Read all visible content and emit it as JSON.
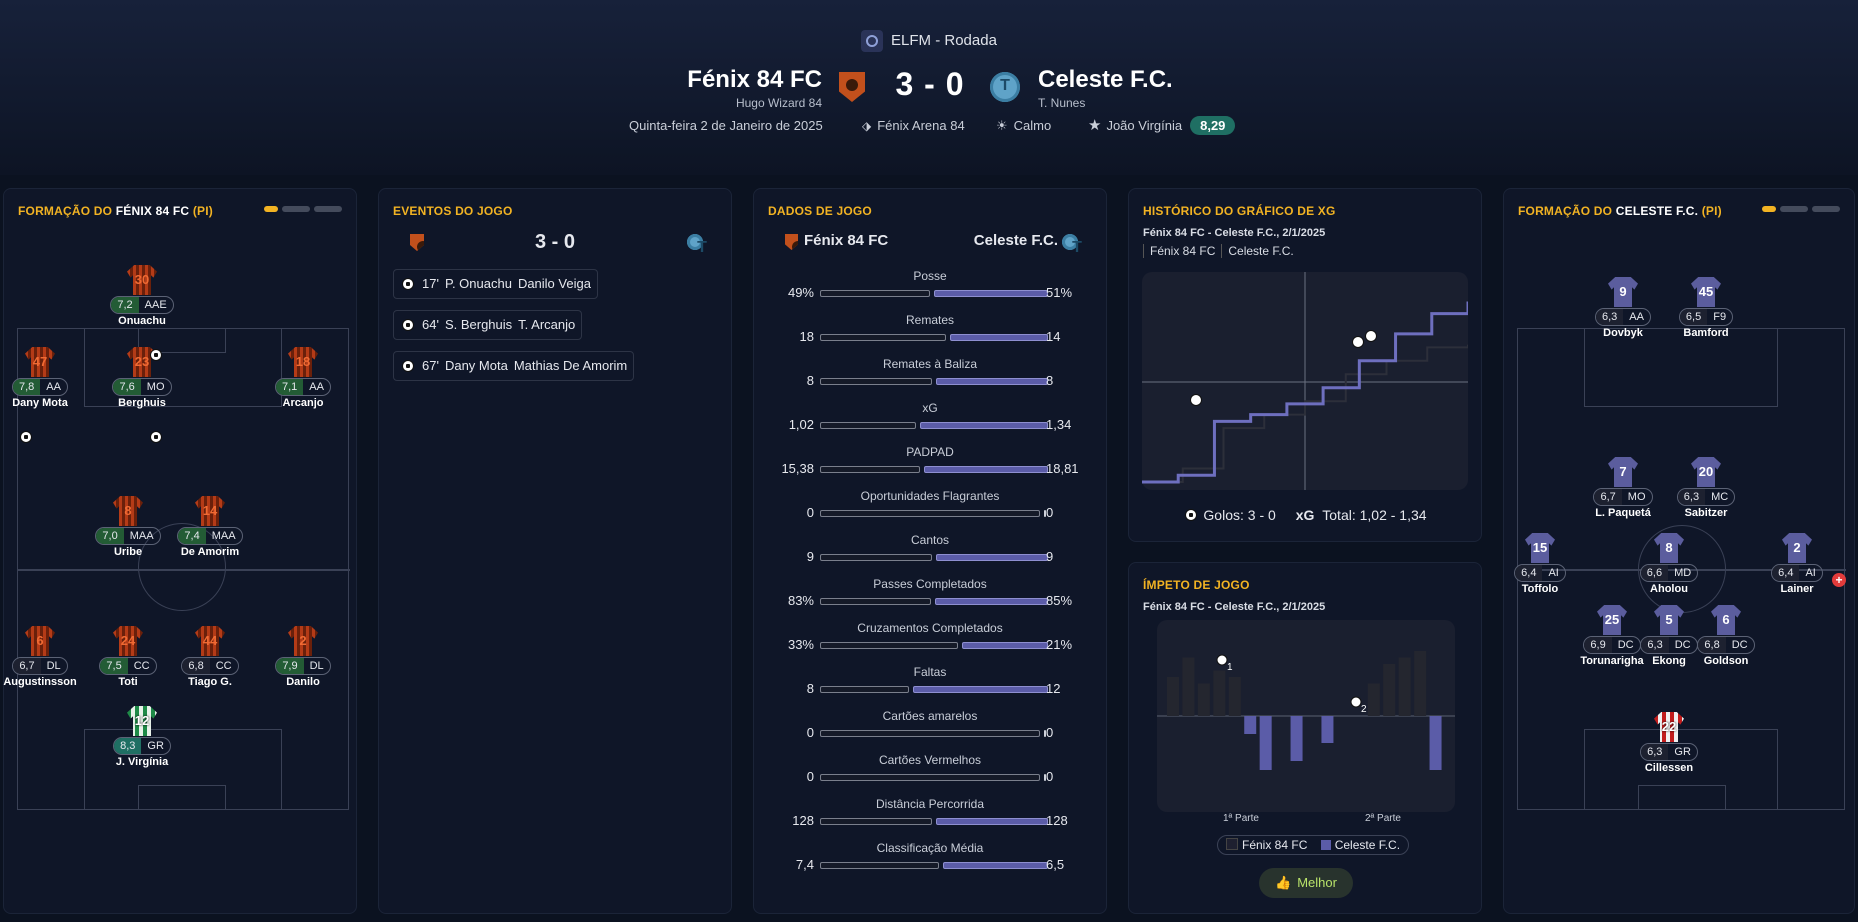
{
  "match": {
    "competition": "ELFM - Rodada",
    "home": {
      "name": "Fénix 84 FC",
      "manager": "Hugo Wizard 84"
    },
    "away": {
      "name": "Celeste F.C.",
      "manager": "T. Nunes"
    },
    "score": "3 - 0",
    "date": "Quinta-feira 2 de Janeiro de 2025",
    "stadium": "Fénix Arena 84",
    "weather": "Calmo",
    "motm": "João Virgínia",
    "motm_rating": "8,29"
  },
  "colors": {
    "accent": "#f2b323",
    "home": "#b43b17",
    "away": "#5b5ca8",
    "rating_good": "#235c35",
    "rating_top": "#1f6f63"
  },
  "lineup_home": {
    "title_prefix": "Formação do",
    "team": "Fénix 84 FC",
    "suffix": "(PI)",
    "players": [
      {
        "num": "30",
        "rating": "7,2",
        "pos": "AAE",
        "name": "Onuachu",
        "tier": "g"
      },
      {
        "num": "47",
        "rating": "7,8",
        "pos": "AA",
        "name": "Dany Mota",
        "tier": "g"
      },
      {
        "num": "23",
        "rating": "7,6",
        "pos": "MO",
        "name": "Berghuis",
        "tier": "g"
      },
      {
        "num": "18",
        "rating": "7,1",
        "pos": "AA",
        "name": "Arcanjo",
        "tier": "g"
      },
      {
        "num": "8",
        "rating": "7,0",
        "pos": "MAA",
        "name": "Uribe",
        "tier": "g"
      },
      {
        "num": "14",
        "rating": "7,4",
        "pos": "MAA",
        "name": "De Amorim",
        "tier": "g"
      },
      {
        "num": "6",
        "rating": "6,7",
        "pos": "DL",
        "name": "Augustinsson",
        "tier": "n"
      },
      {
        "num": "24",
        "rating": "7,5",
        "pos": "CC",
        "name": "Toti",
        "tier": "g"
      },
      {
        "num": "44",
        "rating": "6,8",
        "pos": "CC",
        "name": "Tiago G.",
        "tier": "n"
      },
      {
        "num": "2",
        "rating": "7,9",
        "pos": "DL",
        "name": "Danilo",
        "tier": "g"
      },
      {
        "num": "12",
        "rating": "8,3",
        "pos": "GR",
        "name": "J. Virgínia",
        "tier": "t"
      }
    ]
  },
  "lineup_away": {
    "title_prefix": "Formação do",
    "team": "Celeste F.C.",
    "suffix": "(PI)",
    "players": [
      {
        "num": "9",
        "rating": "6,3",
        "pos": "AA",
        "name": "Dovbyk"
      },
      {
        "num": "45",
        "rating": "6,5",
        "pos": "F9",
        "name": "Bamford"
      },
      {
        "num": "7",
        "rating": "6,7",
        "pos": "MO",
        "name": "L. Paquetá"
      },
      {
        "num": "20",
        "rating": "6,3",
        "pos": "MC",
        "name": "Sabitzer"
      },
      {
        "num": "15",
        "rating": "6,4",
        "pos": "AI",
        "name": "Toffolo"
      },
      {
        "num": "8",
        "rating": "6,6",
        "pos": "MD",
        "name": "Aholou"
      },
      {
        "num": "2",
        "rating": "6,4",
        "pos": "AI",
        "name": "Lainer"
      },
      {
        "num": "25",
        "rating": "6,9",
        "pos": "DC",
        "name": "Torunarigha"
      },
      {
        "num": "5",
        "rating": "6,3",
        "pos": "DC",
        "name": "Ekong"
      },
      {
        "num": "6",
        "rating": "6,8",
        "pos": "DC",
        "name": "Goldson"
      },
      {
        "num": "22",
        "rating": "6,3",
        "pos": "GR",
        "name": "Cillessen"
      }
    ]
  },
  "events": {
    "title": "Eventos do Jogo",
    "score": "3 - 0",
    "items": [
      {
        "minute": "17'",
        "scorer": "P. Onuachu",
        "assist": "Danilo Veiga"
      },
      {
        "minute": "64'",
        "scorer": "S. Berghuis",
        "assist": "T. Arcanjo"
      },
      {
        "minute": "67'",
        "scorer": "Dany Mota",
        "assist": "Mathias De Amorim"
      }
    ]
  },
  "stats": {
    "title": "Dados de Jogo",
    "home": "Fénix 84 FC",
    "away": "Celeste F.C.",
    "rows": [
      {
        "label": "Posse",
        "home": "49%",
        "away": "51%",
        "hv": 49,
        "av": 51
      },
      {
        "label": "Remates",
        "home": "18",
        "away": "14",
        "hv": 18,
        "av": 14
      },
      {
        "label": "Remates à Baliza",
        "home": "8",
        "away": "8",
        "hv": 8,
        "av": 8
      },
      {
        "label": "xG",
        "home": "1,02",
        "away": "1,34",
        "hv": 1.02,
        "av": 1.34
      },
      {
        "label": "PADPAD",
        "home": "15,38",
        "away": "18,81",
        "hv": 15.38,
        "av": 18.81
      },
      {
        "label": "Oportunidades Flagrantes",
        "home": "0",
        "away": "0",
        "hv": 0,
        "av": 0
      },
      {
        "label": "Cantos",
        "home": "9",
        "away": "9",
        "hv": 9,
        "av": 9
      },
      {
        "label": "Passes Completados",
        "home": "83%",
        "away": "85%",
        "hv": 83,
        "av": 85
      },
      {
        "label": "Cruzamentos Completados",
        "home": "33%",
        "away": "21%",
        "hv": 33,
        "av": 21
      },
      {
        "label": "Faltas",
        "home": "8",
        "away": "12",
        "hv": 8,
        "av": 12
      },
      {
        "label": "Cartões amarelos",
        "home": "0",
        "away": "0",
        "hv": 0,
        "av": 0
      },
      {
        "label": "Cartões Vermelhos",
        "home": "0",
        "away": "0",
        "hv": 0,
        "av": 0
      },
      {
        "label": "Distância Percorrida",
        "home": "128",
        "away": "128",
        "hv": 128,
        "av": 128
      },
      {
        "label": "Classificação Média",
        "home": "7,4",
        "away": "6,5",
        "hv": 7.4,
        "av": 6.5
      }
    ]
  },
  "xg_history": {
    "title": "Histórico do Gráfico de xG",
    "subtitle": "Fénix 84 FC - Celeste F.C., 2/1/2025",
    "tab_home": "Fénix 84 FC",
    "tab_away": "Celeste F.C.",
    "goals_label": "Golos: 3 - 0",
    "xg_label": "xG",
    "total_label": "Total: 1,02 - 1,34"
  },
  "momentum": {
    "title": "Ímpeto de Jogo",
    "subtitle": "Fénix 84 FC - Celeste F.C., 2/1/2025",
    "half1": "1ª Parte",
    "half2": "2ª Parte",
    "legend_home": "Fénix 84 FC",
    "legend_away": "Celeste F.C.",
    "goal_marker_1": "1",
    "goal_marker_2": "2",
    "button": "Melhor"
  },
  "chart_data": [
    {
      "type": "line",
      "title": "Histórico do Gráfico de xG",
      "series": [
        {
          "name": "Fénix 84 FC",
          "values": [
            0,
            0.1,
            0.4,
            0.5,
            0.6,
            0.8,
            0.9,
            1.0,
            1.02
          ]
        },
        {
          "name": "Celeste F.C.",
          "values": [
            0,
            0.05,
            0.45,
            0.5,
            0.58,
            0.7,
            0.9,
            1.1,
            1.25,
            1.34
          ]
        }
      ]
    },
    {
      "type": "bar",
      "title": "Ímpeto de Jogo",
      "series": [
        {
          "name": "Fénix 84 FC",
          "values": [
            6,
            9,
            5,
            7,
            6,
            0,
            0,
            0,
            0,
            0,
            0,
            0,
            0,
            5,
            8,
            9,
            10,
            0
          ]
        },
        {
          "name": "Celeste F.C.",
          "values": [
            0,
            0,
            0,
            0,
            0,
            2,
            6,
            0,
            5,
            0,
            3,
            0,
            0,
            0,
            0,
            0,
            0,
            6
          ]
        }
      ]
    }
  ]
}
